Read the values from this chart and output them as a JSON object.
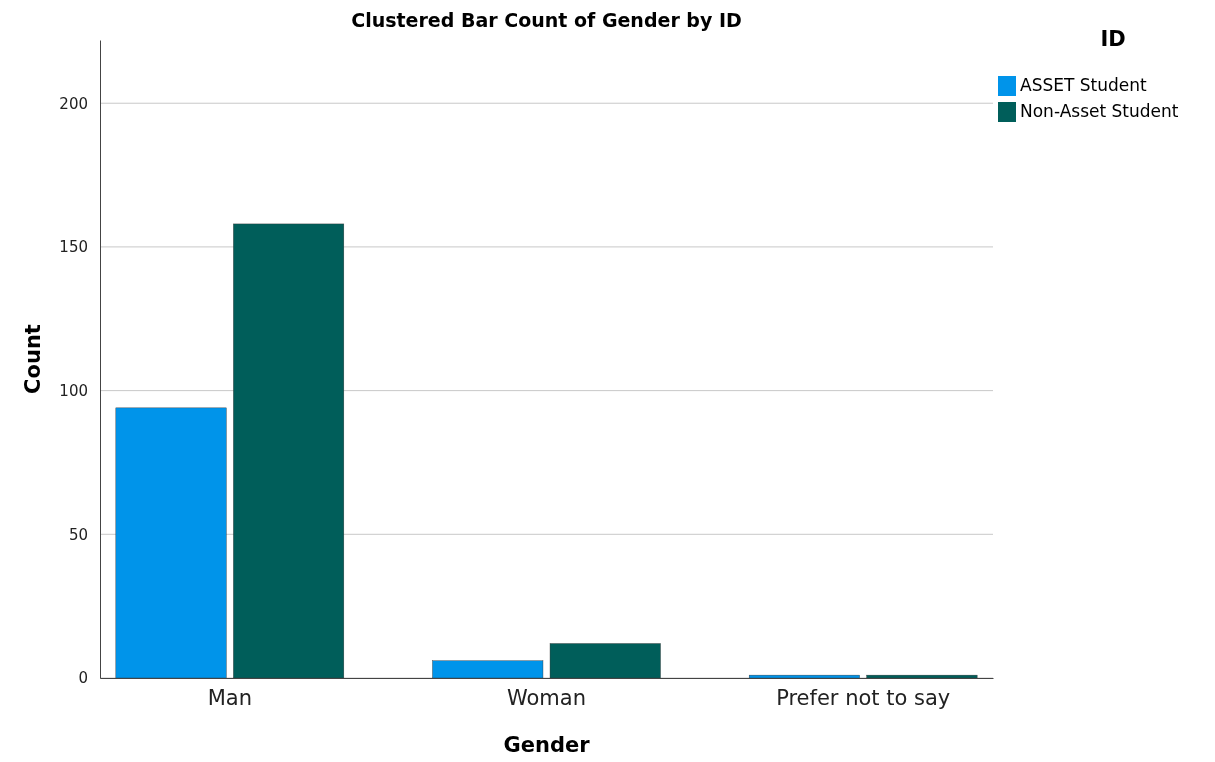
{
  "chart_data": {
    "type": "bar",
    "title": "Clustered Bar Count of Gender by ID",
    "xlabel": "Gender",
    "ylabel": "Count",
    "legend_title": "ID",
    "categories": [
      "Man",
      "Woman",
      "Prefer not to say"
    ],
    "series": [
      {
        "name": "ASSET Student",
        "color": "#0094ea",
        "values": [
          94,
          6,
          1
        ]
      },
      {
        "name": "Non-Asset Student",
        "color": "#005e5a",
        "values": [
          158,
          12,
          1
        ]
      }
    ],
    "ylim": [
      0,
      222
    ],
    "yticks": [
      0,
      50,
      100,
      150,
      200
    ],
    "grid": "y",
    "legend": "top right"
  }
}
